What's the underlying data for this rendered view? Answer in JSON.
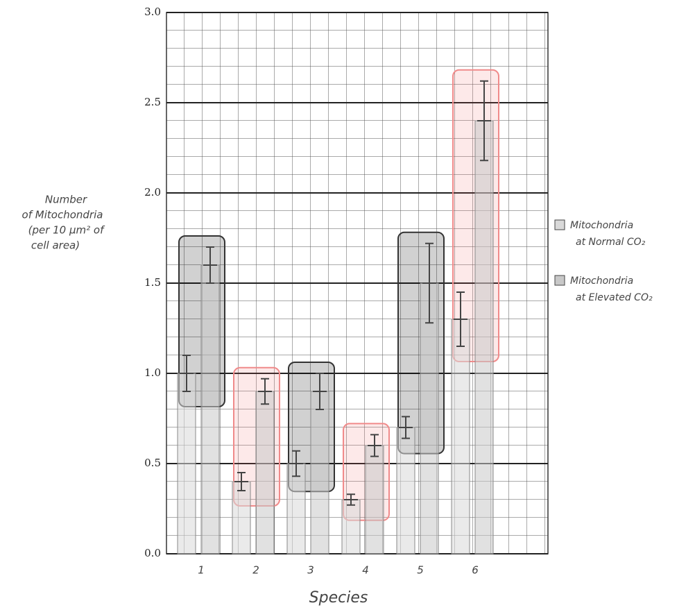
{
  "chart_data": {
    "type": "bar",
    "x_label": "Species",
    "y_label": [
      "Number",
      "of Mitochondria",
      "(per 10 μm² of",
      "cell area)"
    ],
    "categories": [
      "1",
      "2",
      "3",
      "4",
      "5",
      "6"
    ],
    "series": [
      {
        "name": "Mitochondria at Normal CO₂",
        "color": "#d9d9d9",
        "values": [
          1.0,
          0.4,
          0.5,
          0.3,
          0.7,
          1.3
        ],
        "errors": [
          0.1,
          0.05,
          0.07,
          0.03,
          0.06,
          0.15
        ]
      },
      {
        "name": "Mitochondria at Elevated CO₂",
        "color": "#c8c8c8",
        "values": [
          1.6,
          0.9,
          0.9,
          0.6,
          1.5,
          2.4
        ],
        "errors": [
          0.1,
          0.07,
          0.1,
          0.06,
          0.22,
          0.22
        ]
      }
    ],
    "ylim": [
      0,
      3.0
    ],
    "yticks": [
      {
        "value": 0,
        "label": "0.0"
      },
      0.5,
      {
        "value": 1,
        "label": "1.0"
      },
      1.5,
      {
        "value": 2,
        "label": "2.0"
      },
      2.5,
      {
        "value": 3,
        "label": "3.0"
      }
    ],
    "grid": true
  }
}
